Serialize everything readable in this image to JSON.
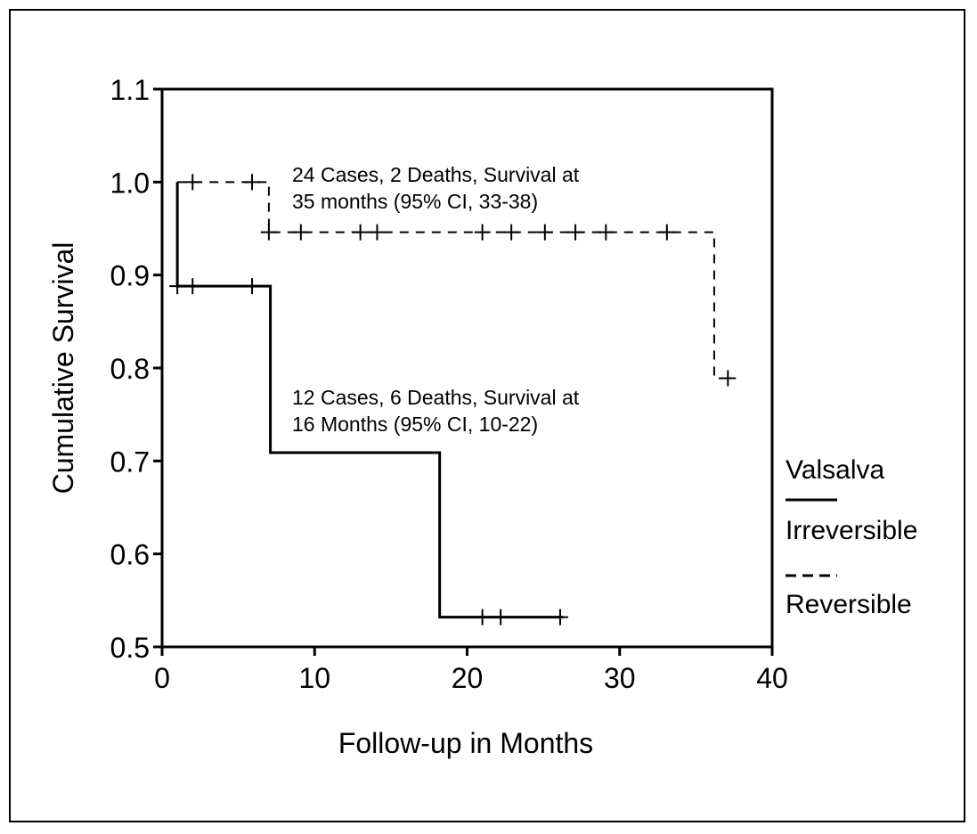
{
  "chart_data": {
    "type": "line",
    "subtype": "kaplan-meier step",
    "xlabel": "Follow-up in Months",
    "ylabel": "Cumulative Survival",
    "xlim": [
      0,
      40
    ],
    "ylim": [
      0.5,
      1.1
    ],
    "xticks": [
      "0",
      "10",
      "20",
      "30",
      "40"
    ],
    "yticks": [
      "0.5",
      "0.6",
      "0.7",
      "0.8",
      "0.9",
      "1.0",
      "1.1"
    ],
    "grid": false,
    "legend": {
      "title": "Valsalva",
      "placement": "right",
      "entries": [
        {
          "label": "Irreversible",
          "style": "solid"
        },
        {
          "label": "Reversible",
          "style": "dashed"
        }
      ]
    },
    "series": [
      {
        "name": "Irreversible",
        "style": "solid",
        "steps": [
          [
            1,
            1.0
          ],
          [
            1,
            0.888
          ],
          [
            7.1,
            0.888
          ],
          [
            7.1,
            0.709
          ],
          [
            18.2,
            0.709
          ],
          [
            18.2,
            0.532
          ],
          [
            26.3,
            0.532
          ]
        ],
        "censored": [
          [
            1,
            0.888
          ],
          [
            2,
            0.888
          ],
          [
            5.9,
            0.888
          ],
          [
            21,
            0.532
          ],
          [
            22.2,
            0.532
          ],
          [
            26.1,
            0.532
          ]
        ]
      },
      {
        "name": "Reversible",
        "style": "dashed",
        "steps": [
          [
            1,
            1.0
          ],
          [
            7.0,
            1.0
          ],
          [
            7.0,
            0.946
          ],
          [
            36.2,
            0.946
          ],
          [
            36.2,
            0.789
          ],
          [
            37.1,
            0.789
          ]
        ],
        "censored": [
          [
            2,
            1.0
          ],
          [
            5.9,
            1.0
          ],
          [
            7.0,
            0.946
          ],
          [
            9.1,
            0.946
          ],
          [
            13.0,
            0.946
          ],
          [
            14.1,
            0.946
          ],
          [
            21,
            0.946
          ],
          [
            22.9,
            0.946
          ],
          [
            25.1,
            0.946
          ],
          [
            27.1,
            0.946
          ],
          [
            29.1,
            0.946
          ],
          [
            33.1,
            0.946
          ],
          [
            37.1,
            0.789
          ]
        ]
      }
    ],
    "annotations": [
      {
        "lines": [
          "24 Cases, 2 Deaths, Survival at",
          "35 months (95% CI, 33-38)"
        ]
      },
      {
        "lines": [
          "12 Cases, 6 Deaths, Survival at",
          "16 Months (95% CI, 10-22)"
        ]
      }
    ]
  }
}
